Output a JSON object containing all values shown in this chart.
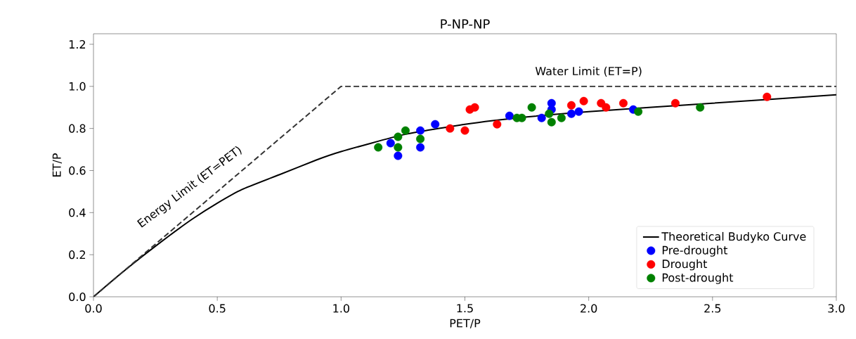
{
  "chart_data": {
    "type": "scatter",
    "title": "P-NP-NP",
    "xlabel": "PET/P",
    "ylabel": "ET/P",
    "xlim": [
      0,
      3
    ],
    "ylim": [
      0,
      1.25
    ],
    "xticks": [
      {
        "value": 0,
        "label": "0.0"
      },
      0.5,
      {
        "value": 1,
        "label": "1.0"
      },
      1.5,
      {
        "value": 2,
        "label": "2.0"
      },
      2.5,
      {
        "value": 3,
        "label": "3.0"
      }
    ],
    "yticks": [
      {
        "value": 0,
        "label": "0.0"
      },
      0.2,
      0.4,
      0.6,
      0.8,
      {
        "value": 1,
        "label": "1.0"
      },
      1.2
    ],
    "grid": false,
    "legend": "bottom right",
    "annotations": [
      "Energy Limit (ET=PET)",
      "Water Limit (ET=P)"
    ],
    "series": [
      {
        "name": "Theoretical Budyko Curve",
        "type": "line",
        "marker": "none",
        "color": "#000000",
        "x": [
          0,
          0.1,
          0.2,
          0.3,
          0.4,
          0.5,
          0.6,
          0.75,
          0.9,
          1,
          1.25,
          1.5,
          1.75,
          2,
          2.5,
          3
        ],
        "values": [
          0,
          0.1,
          0.195,
          0.285,
          0.37,
          0.445,
          0.51,
          0.58,
          0.65,
          0.69,
          0.77,
          0.82,
          0.855,
          0.88,
          0.92,
          0.96
        ]
      },
      {
        "type": "line",
        "marker": "none",
        "line_style": "dashed",
        "color": "#333333",
        "x": [
          0,
          1,
          3
        ],
        "values": [
          0,
          1,
          1
        ]
      },
      {
        "name": "Pre-drought",
        "marker": "circle",
        "color": "#0000ff",
        "x": [
          1.2,
          1.23,
          1.32,
          1.32,
          1.38,
          1.68,
          1.81,
          1.85,
          1.85,
          1.93,
          1.96,
          2.18
        ],
        "values": [
          0.73,
          0.67,
          0.79,
          0.71,
          0.82,
          0.86,
          0.85,
          0.89,
          0.92,
          0.87,
          0.88,
          0.89
        ]
      },
      {
        "name": "Drought",
        "marker": "circle",
        "color": "#ff0000",
        "x": [
          1.44,
          1.5,
          1.52,
          1.54,
          1.63,
          1.93,
          1.98,
          2.05,
          2.07,
          2.14,
          2.35,
          2.72
        ],
        "values": [
          0.8,
          0.79,
          0.89,
          0.9,
          0.82,
          0.91,
          0.93,
          0.92,
          0.9,
          0.92,
          0.92,
          0.95
        ]
      },
      {
        "name": "Post-drought",
        "marker": "circle",
        "color": "#008000",
        "x": [
          1.15,
          1.23,
          1.23,
          1.26,
          1.32,
          1.71,
          1.73,
          1.77,
          1.84,
          1.85,
          1.89,
          2.2,
          2.45
        ],
        "values": [
          0.71,
          0.71,
          0.76,
          0.79,
          0.75,
          0.85,
          0.85,
          0.9,
          0.87,
          0.83,
          0.85,
          0.88,
          0.9
        ]
      }
    ]
  }
}
